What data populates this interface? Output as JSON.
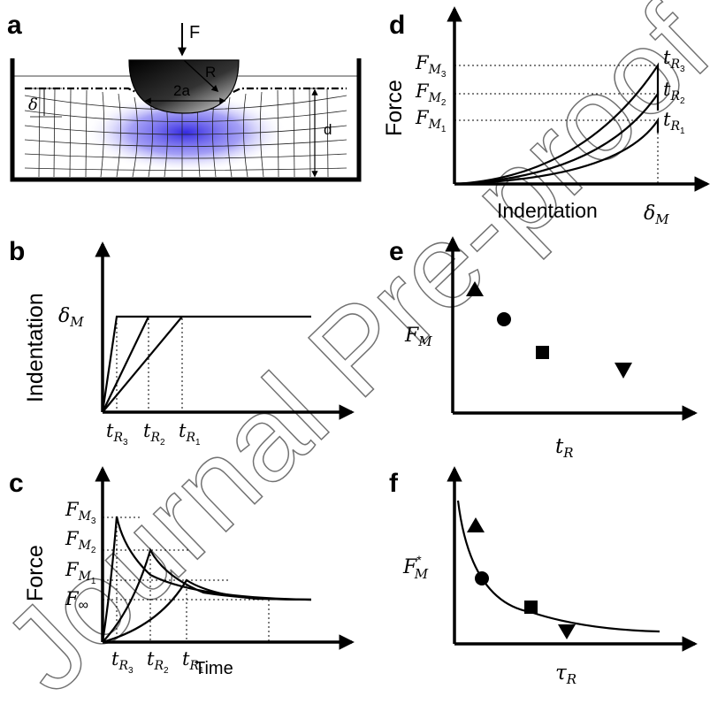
{
  "panels": {
    "a": {
      "label": "a",
      "force": "F",
      "radius": "R",
      "contact": "2a",
      "indent": "δ",
      "depth": "d"
    },
    "b": {
      "label": "b",
      "ylabel": "Indentation",
      "ymark": "δ",
      "ymark_sub": "M",
      "ticks": [
        {
          "t": "t",
          "s": "R",
          "n": "3"
        },
        {
          "t": "t",
          "s": "R",
          "n": "2"
        },
        {
          "t": "t",
          "s": "R",
          "n": "1"
        }
      ]
    },
    "c": {
      "label": "c",
      "ylabel": "Force",
      "xlabel": "Time",
      "ymarks": [
        {
          "t": "F",
          "s": "M",
          "n": "3"
        },
        {
          "t": "F",
          "s": "M",
          "n": "2"
        },
        {
          "t": "F",
          "s": "M",
          "n": "1"
        }
      ],
      "finf": "F",
      "finf_sub": "∞",
      "ticks": [
        {
          "t": "t",
          "s": "R",
          "n": "3"
        },
        {
          "t": "t",
          "s": "R",
          "n": "2"
        },
        {
          "t": "t",
          "s": "R",
          "n": "1"
        }
      ]
    },
    "d": {
      "label": "d",
      "ylabel": "Force",
      "xlabel": "Indentation",
      "xmark": "δ",
      "xmark_sub": "M",
      "ymarks": [
        {
          "t": "F",
          "s": "M",
          "n": "3"
        },
        {
          "t": "F",
          "s": "M",
          "n": "2"
        },
        {
          "t": "F",
          "s": "M",
          "n": "1"
        }
      ],
      "curve_labels": [
        {
          "t": "t",
          "s": "R",
          "n": "3"
        },
        {
          "t": "t",
          "s": "R",
          "n": "2"
        },
        {
          "t": "t",
          "s": "R",
          "n": "1"
        }
      ]
    },
    "e": {
      "label": "e",
      "ylabel": "F",
      "ylabel_sub": "M",
      "xlabel": "t",
      "xlabel_sub": "R"
    },
    "f": {
      "label": "f",
      "ylabel": "F",
      "ylabel_sup": "*",
      "ylabel_sub": "M",
      "xlabel": "τ",
      "xlabel_sub": "R"
    }
  },
  "watermark": "Journal Pre-proof",
  "markers": [
    "triangle-up",
    "circle",
    "square",
    "triangle-down"
  ]
}
